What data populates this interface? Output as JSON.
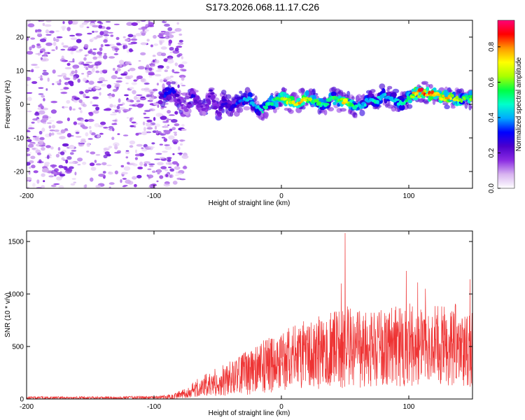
{
  "title": "S173.2026.068.11.17.C26",
  "chart_data": [
    {
      "type": "heatmap",
      "name": "spectrogram",
      "xlabel": "Height of straight line (km)",
      "ylabel": "Frequency (Hz)",
      "xlim": [
        -200,
        150
      ],
      "ylim": [
        -25,
        25
      ],
      "xticks": [
        -200,
        -100,
        0,
        100
      ],
      "yticks": [
        -20,
        -10,
        0,
        10,
        20
      ],
      "colorbar": {
        "label": "Normalized spectral amplitude",
        "range": [
          0,
          0.95
        ],
        "ticks": [
          0.0,
          0.2,
          0.4,
          0.6,
          0.8
        ],
        "tick_labels": [
          "0.0",
          "0.2",
          "0.4",
          "0.6",
          "0.8"
        ],
        "colors": [
          "#ffffff",
          "#d8b4f0",
          "#8a2be2",
          "#4b00cc",
          "#0000ff",
          "#00aaff",
          "#00ffcc",
          "#00ff44",
          "#aaff00",
          "#ffff00",
          "#ff9900",
          "#ff0000",
          "#ff0077"
        ]
      },
      "noise_region": {
        "x": [
          -200,
          -85
        ],
        "y": [
          -25,
          25
        ],
        "level": 0.1
      },
      "signal_ridge": {
        "x": [
          -95,
          -90,
          -85,
          -80,
          -75,
          -70,
          -65,
          -60,
          -55,
          -50,
          -45,
          -40,
          -35,
          -30,
          -25,
          -20,
          -15,
          -10,
          -5,
          0,
          5,
          10,
          15,
          20,
          25,
          30,
          35,
          40,
          45,
          50,
          55,
          60,
          65,
          70,
          75,
          80,
          85,
          90,
          95,
          100,
          105,
          110,
          115,
          120,
          125,
          130,
          135,
          140,
          145
        ],
        "freq": [
          2,
          3,
          4,
          1,
          -2,
          3,
          0,
          -2,
          4,
          -3,
          1,
          -1,
          0,
          1,
          2,
          -1,
          -2,
          0,
          1,
          2,
          1,
          0,
          1,
          2,
          1,
          0,
          0,
          2,
          1,
          1,
          0,
          -1,
          0,
          2,
          1,
          3,
          2,
          1,
          0,
          2,
          3,
          4,
          3,
          3,
          2,
          2,
          2,
          1,
          2
        ],
        "amp": [
          0.25,
          0.35,
          0.3,
          0.2,
          0.15,
          0.3,
          0.2,
          0.2,
          0.25,
          0.2,
          0.3,
          0.25,
          0.35,
          0.4,
          0.45,
          0.4,
          0.5,
          0.5,
          0.55,
          0.6,
          0.7,
          0.75,
          0.8,
          0.7,
          0.6,
          0.55,
          0.5,
          0.55,
          0.6,
          0.75,
          0.6,
          0.5,
          0.45,
          0.4,
          0.5,
          0.45,
          0.4,
          0.45,
          0.5,
          0.55,
          0.8,
          0.9,
          0.85,
          0.8,
          0.75,
          0.8,
          0.7,
          0.65,
          0.6
        ]
      }
    },
    {
      "type": "line",
      "name": "snr",
      "xlabel": "Height of straight line (km)",
      "ylabel": "SNR (10 * v/v)",
      "xlim": [
        -200,
        150
      ],
      "ylim": [
        0,
        1600
      ],
      "xticks": [
        -200,
        -100,
        0,
        100
      ],
      "yticks": [
        0,
        500,
        1000,
        1500
      ],
      "color": "#ee3333",
      "envelope": {
        "x": [
          -200,
          -150,
          -100,
          -85,
          -75,
          -65,
          -55,
          -45,
          -35,
          -25,
          -15,
          -5,
          0,
          5,
          15,
          25,
          35,
          45,
          50,
          55,
          65,
          75,
          85,
          95,
          100,
          105,
          115,
          125,
          135,
          145,
          150
        ],
        "mean": [
          12,
          12,
          14,
          20,
          60,
          110,
          150,
          180,
          220,
          260,
          300,
          330,
          350,
          380,
          420,
          440,
          450,
          470,
          500,
          480,
          470,
          480,
          500,
          500,
          520,
          520,
          510,
          500,
          520,
          500,
          510
        ],
        "spread": [
          12,
          12,
          14,
          25,
          50,
          90,
          120,
          150,
          180,
          220,
          260,
          280,
          290,
          300,
          320,
          340,
          360,
          380,
          400,
          380,
          360,
          360,
          380,
          380,
          400,
          400,
          390,
          380,
          400,
          380,
          400
        ]
      },
      "peaks": [
        {
          "x": 50,
          "y": 1580
        },
        {
          "x": 47,
          "y": 1100
        },
        {
          "x": 98,
          "y": 1220
        },
        {
          "x": 107,
          "y": 1110
        },
        {
          "x": 113,
          "y": 1050
        },
        {
          "x": 148,
          "y": 1140
        }
      ]
    }
  ]
}
